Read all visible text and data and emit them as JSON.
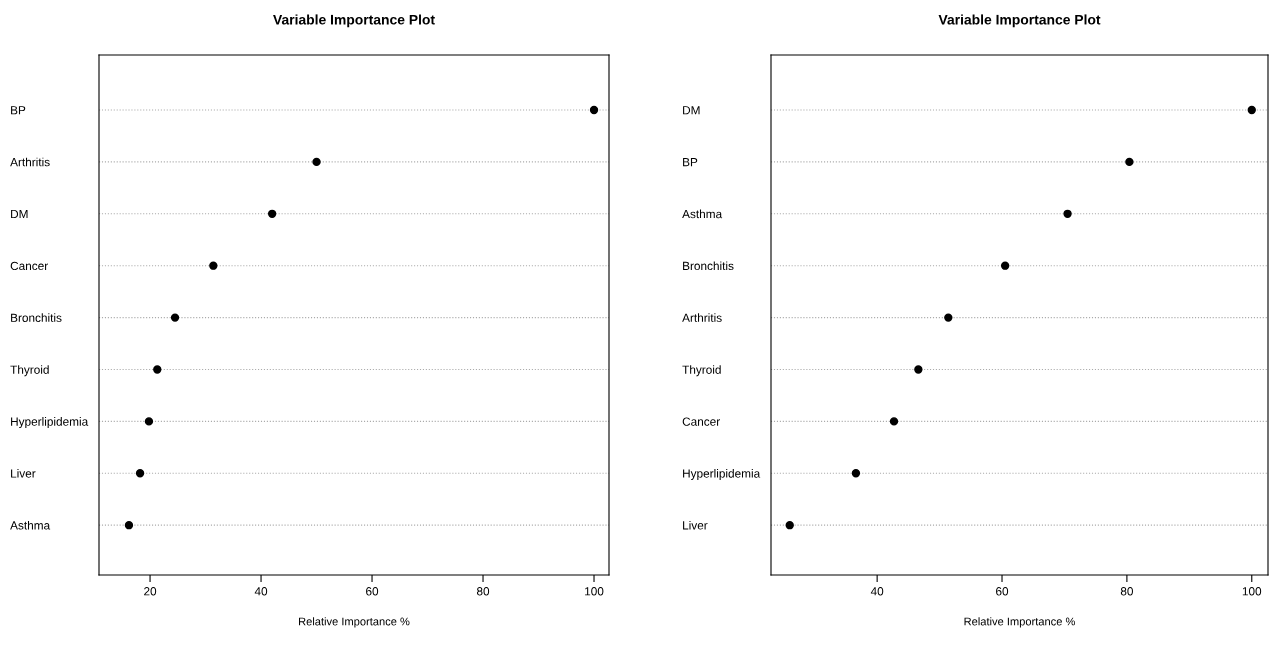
{
  "chart_data": [
    {
      "type": "scatter",
      "orientation": "horizontal",
      "title": "Variable Importance Plot",
      "xlabel": "Relative Importance %",
      "categories": [
        "BP",
        "Arthritis",
        "DM",
        "Cancer",
        "Bronchitis",
        "Thyroid",
        "Hyperlipidemia",
        "Liver",
        "Asthma"
      ],
      "series": [
        {
          "color": "#000000",
          "values": [
            100,
            50,
            42,
            31.4,
            24.5,
            21.3,
            19.8,
            18.2,
            16.2
          ]
        }
      ],
      "xlim": [
        10.8,
        102.7
      ],
      "xticks": [
        20,
        40,
        60,
        80,
        100
      ],
      "grid": "y",
      "line_style": "dotted",
      "marker": "circle"
    },
    {
      "type": "scatter",
      "orientation": "horizontal",
      "title": "Variable Importance Plot",
      "xlabel": "Relative Importance %",
      "categories": [
        "DM",
        "BP",
        "Asthma",
        "Bronchitis",
        "Arthritis",
        "Thyroid",
        "Cancer",
        "Hyperlipidemia",
        "Liver"
      ],
      "series": [
        {
          "color": "#000000",
          "values": [
            100,
            80.4,
            70.5,
            60.5,
            51.4,
            46.6,
            42.7,
            36.6,
            26.0
          ]
        }
      ],
      "xlim": [
        23.0,
        102.6
      ],
      "xticks": [
        40,
        60,
        80,
        100
      ],
      "grid": "y",
      "line_style": "dotted",
      "marker": "circle"
    }
  ]
}
